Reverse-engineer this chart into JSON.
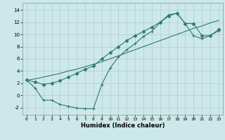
{
  "xlabel": "Humidex (Indice chaleur)",
  "background_color": "#cce8e8",
  "grid_color": "#b0cccc",
  "line_color": "#2d7a6f",
  "xlim": [
    -0.5,
    23.5
  ],
  "ylim": [
    -3.2,
    15.2
  ],
  "xticks": [
    0,
    1,
    2,
    3,
    4,
    5,
    6,
    7,
    8,
    9,
    10,
    11,
    12,
    13,
    14,
    15,
    16,
    17,
    18,
    19,
    20,
    21,
    22,
    23
  ],
  "yticks": [
    -2,
    0,
    2,
    4,
    6,
    8,
    10,
    12,
    14
  ],
  "curve_dip_x": [
    0,
    1,
    2,
    3,
    4,
    5,
    6,
    7,
    8,
    9,
    10,
    11,
    12,
    13,
    14,
    15,
    16,
    17,
    18,
    19,
    20,
    21,
    22,
    23
  ],
  "curve_dip_y": [
    2.5,
    1.2,
    -0.8,
    -0.8,
    -1.5,
    -1.8,
    -2.1,
    -2.2,
    -2.2,
    1.8,
    4.5,
    6.3,
    7.5,
    8.5,
    9.7,
    10.5,
    12.0,
    13.2,
    13.5,
    11.8,
    9.8,
    9.3,
    9.8,
    10.6
  ],
  "curve_straight_x": [
    0,
    1,
    2,
    3,
    4,
    5,
    6,
    7,
    8,
    9,
    10,
    11,
    12,
    13,
    14,
    15,
    16,
    17,
    18,
    19,
    20,
    21,
    22,
    23
  ],
  "curve_straight_y": [
    2.5,
    2.7,
    3.0,
    3.3,
    3.6,
    4.0,
    4.3,
    4.7,
    5.1,
    5.5,
    6.0,
    6.5,
    7.0,
    7.5,
    8.0,
    8.5,
    9.0,
    9.5,
    10.0,
    10.5,
    11.0,
    11.4,
    11.9,
    12.3
  ],
  "curve_upper_x": [
    0,
    1,
    2,
    3,
    4,
    5,
    6,
    7,
    8,
    9,
    10,
    11,
    12,
    13,
    14,
    15,
    16,
    17,
    18,
    19,
    20,
    21,
    22,
    23
  ],
  "curve_upper_y": [
    2.5,
    2.2,
    1.8,
    2.0,
    2.4,
    3.0,
    3.6,
    4.3,
    4.8,
    6.0,
    7.0,
    8.0,
    9.0,
    9.8,
    10.5,
    11.2,
    12.0,
    13.0,
    13.5,
    11.8,
    11.8,
    9.8,
    9.8,
    10.8
  ]
}
